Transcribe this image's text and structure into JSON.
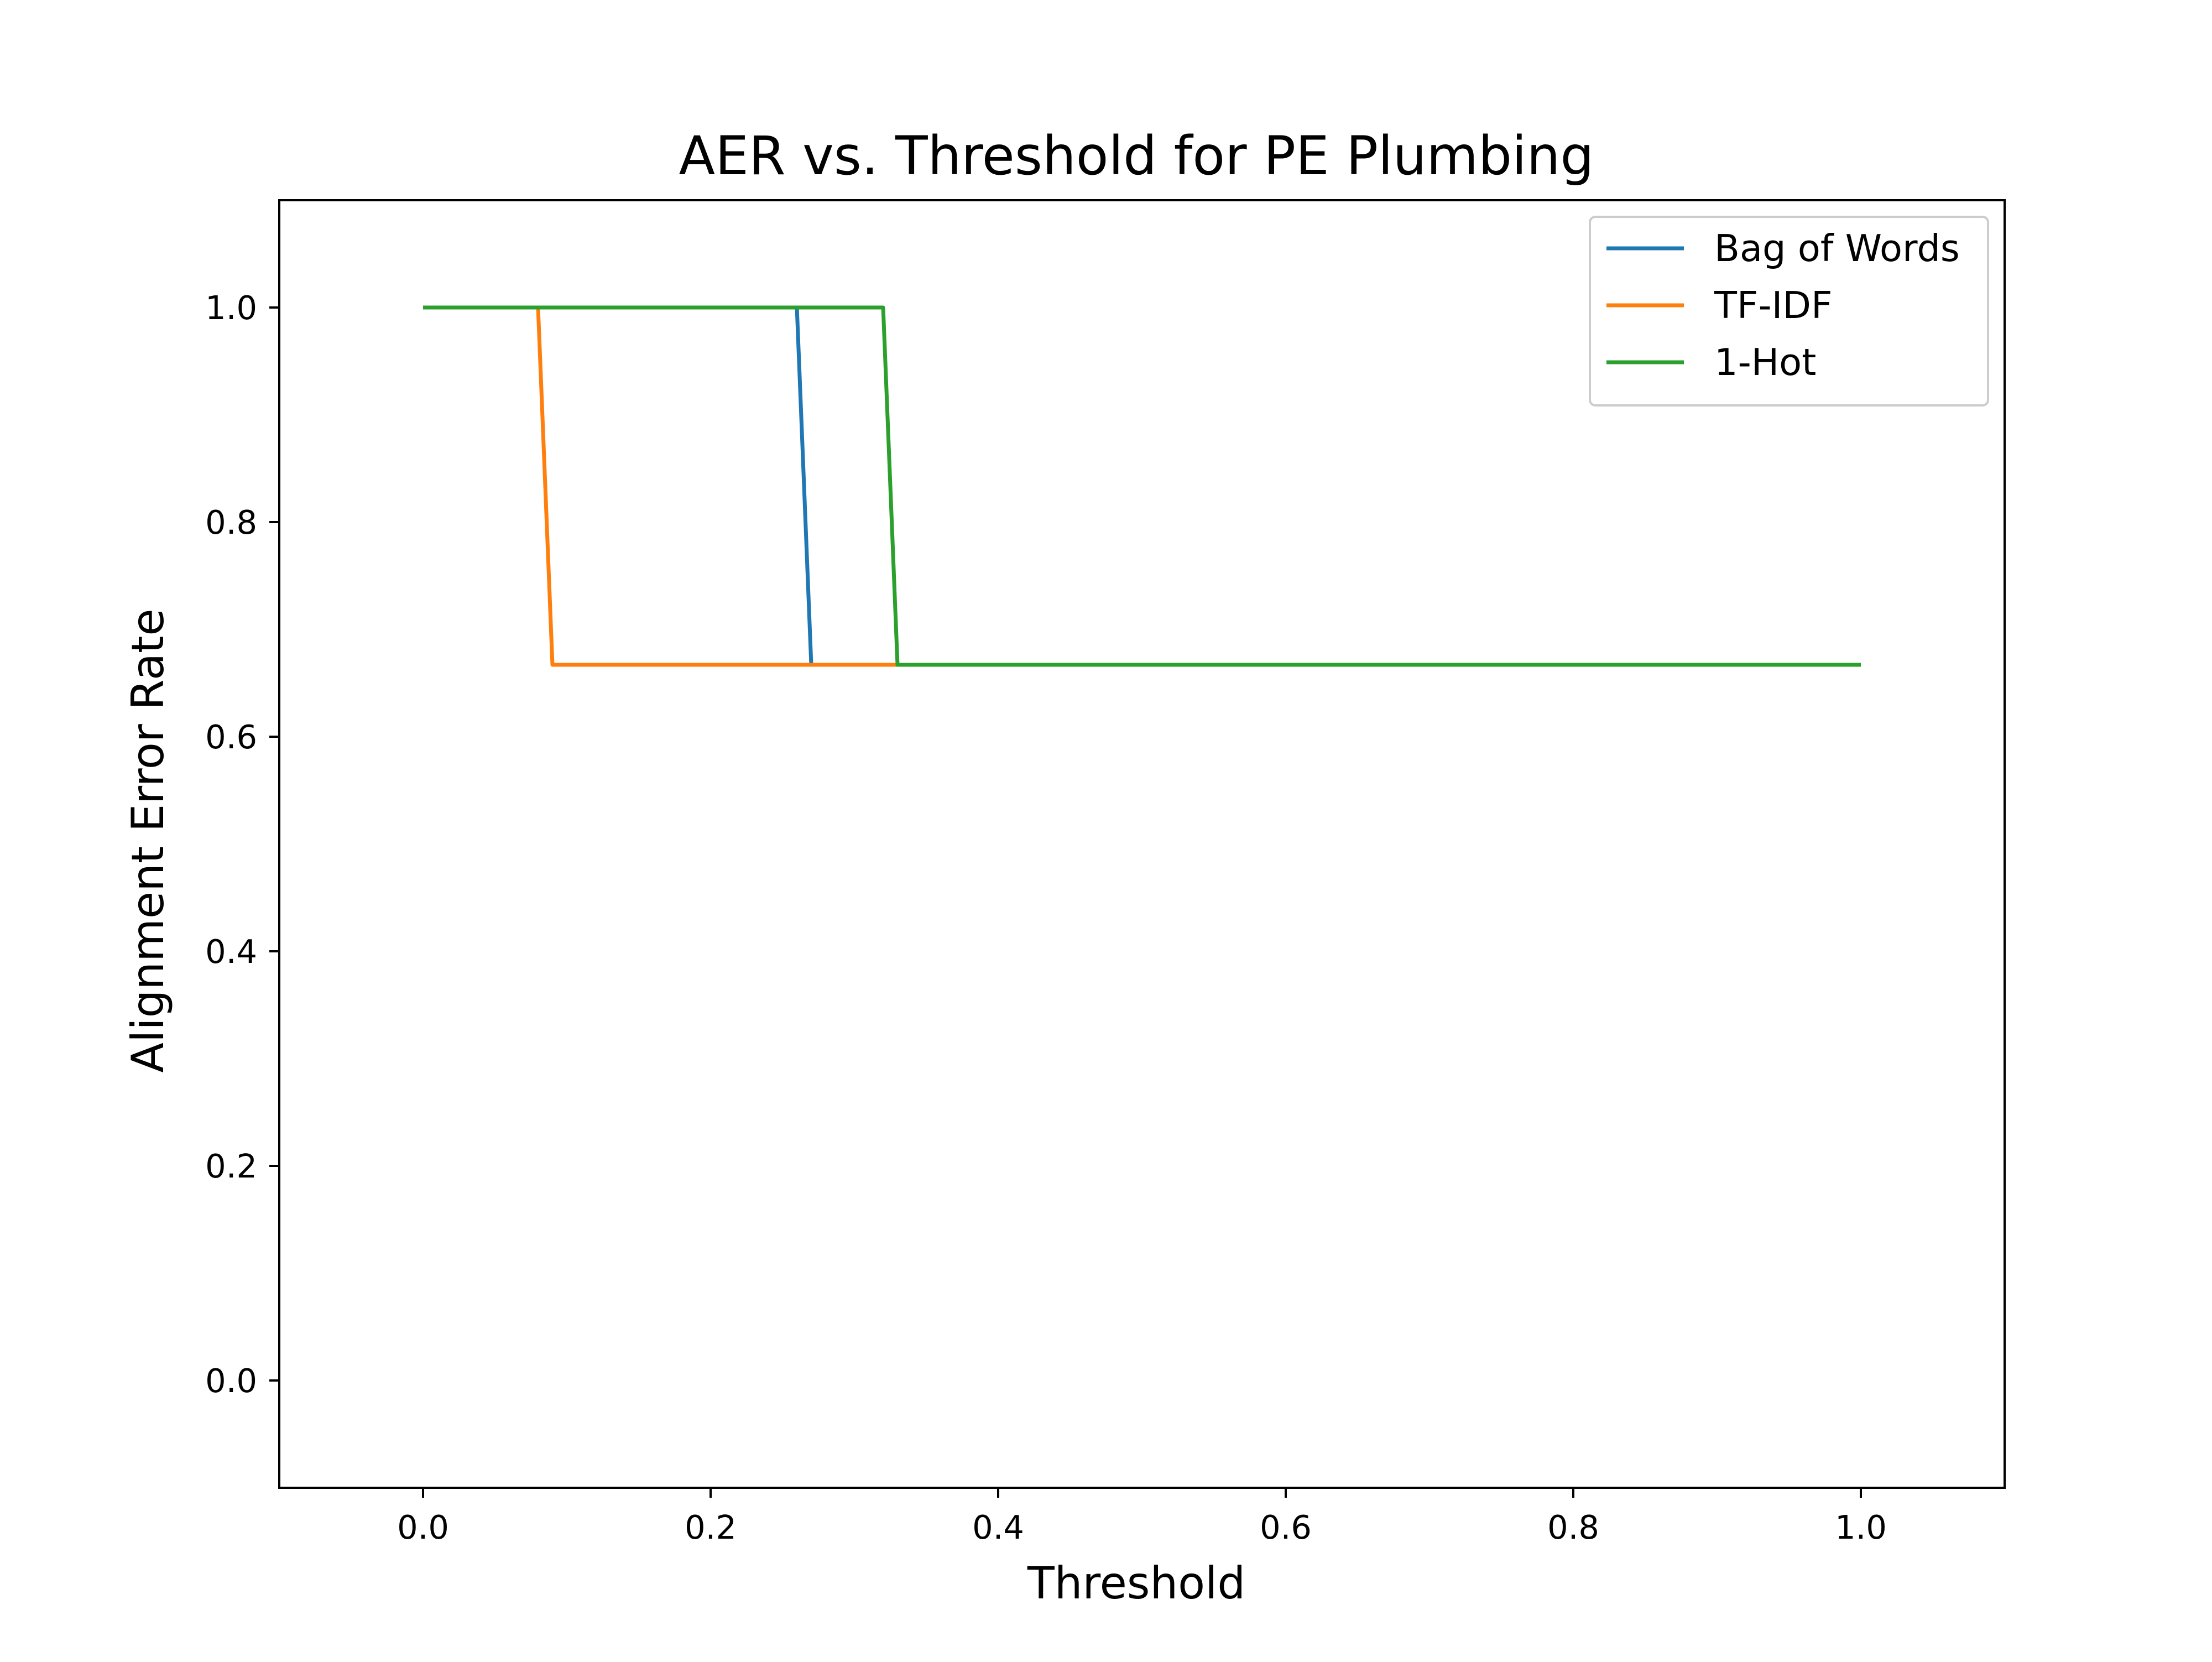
{
  "chart_data": {
    "type": "line",
    "title": "AER vs. Threshold for PE Plumbing",
    "xlabel": "Threshold",
    "ylabel": "Alignment Error Rate",
    "xlim": [
      -0.1,
      1.1
    ],
    "ylim": [
      -0.1,
      1.1
    ],
    "xticks": [
      0.0,
      0.2,
      0.4,
      0.6,
      0.8,
      1.0
    ],
    "xtick_labels": [
      "0.0",
      "0.2",
      "0.4",
      "0.6",
      "0.8",
      "1.0"
    ],
    "yticks": [
      0.0,
      0.2,
      0.4,
      0.6,
      0.8,
      1.0
    ],
    "ytick_labels": [
      "0.0",
      "0.2",
      "0.4",
      "0.6",
      "0.8",
      "1.0"
    ],
    "grid": false,
    "legend_position": "top-right",
    "series": [
      {
        "name": "Bag of Words",
        "color": "#1f77b4",
        "x": [
          0.0,
          0.26,
          0.27,
          1.0
        ],
        "y": [
          1.0,
          1.0,
          0.667,
          0.667
        ]
      },
      {
        "name": "TF-IDF",
        "color": "#ff7f0e",
        "x": [
          0.0,
          0.08,
          0.09,
          1.0
        ],
        "y": [
          1.0,
          1.0,
          0.667,
          0.667
        ]
      },
      {
        "name": "1-Hot",
        "color": "#2ca02c",
        "x": [
          0.0,
          0.32,
          0.33,
          1.0
        ],
        "y": [
          1.0,
          1.0,
          0.667,
          0.667
        ]
      }
    ]
  }
}
